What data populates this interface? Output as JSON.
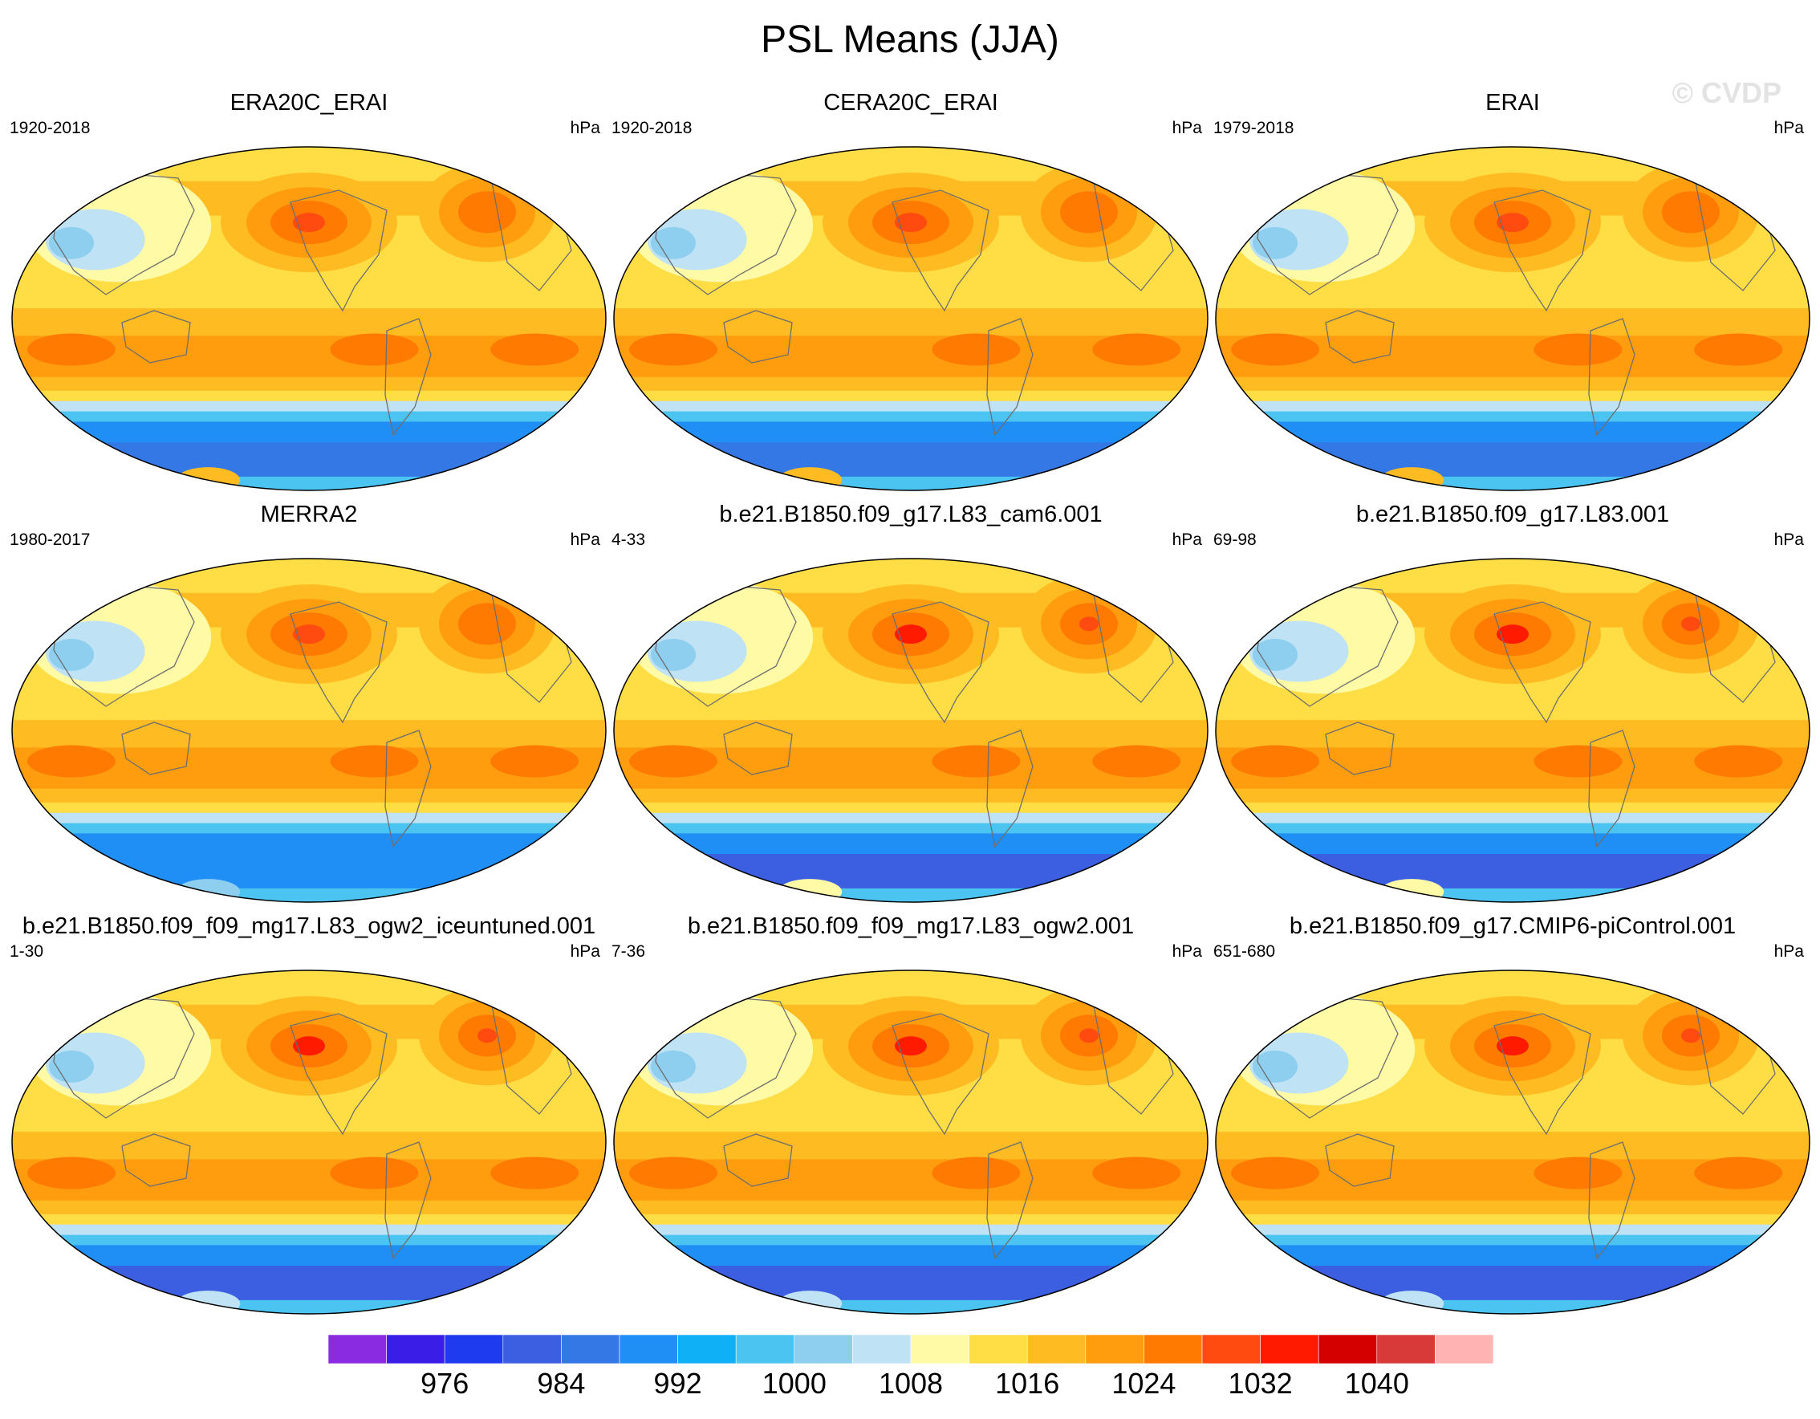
{
  "chart_data": {
    "type": "heatmap",
    "title": "PSL Means (JJA)",
    "watermark": "© CVDP",
    "projection": "Robinson (Pacific-centered)",
    "panels": [
      {
        "title": "ERA20C_ERAI",
        "period": "1920-2018",
        "units": "hPa",
        "subtropical_high_max": 1028,
        "polar_trough_min": 984,
        "antarctic_interior": "1016"
      },
      {
        "title": "CERA20C_ERAI",
        "period": "1920-2018",
        "units": "hPa",
        "subtropical_high_max": 1028,
        "polar_trough_min": 984,
        "antarctic_interior": "1016"
      },
      {
        "title": "ERAI",
        "period": "1979-2018",
        "units": "hPa",
        "subtropical_high_max": 1028,
        "polar_trough_min": 984,
        "antarctic_interior": "1016"
      },
      {
        "title": "MERRA2",
        "period": "1980-2017",
        "units": "hPa",
        "subtropical_high_max": 1028,
        "polar_trough_min": 988,
        "antarctic_interior": "1000"
      },
      {
        "title": "b.e21.B1850.f09_g17.L83_cam6.001",
        "period": "4-33",
        "units": "hPa",
        "subtropical_high_max": 1032,
        "polar_trough_min": 980,
        "antarctic_interior": "1008"
      },
      {
        "title": "b.e21.B1850.f09_g17.L83.001",
        "period": "69-98",
        "units": "hPa",
        "subtropical_high_max": 1032,
        "polar_trough_min": 980,
        "antarctic_interior": "1008"
      },
      {
        "title": "b.e21.B1850.f09_f09_mg17.L83_ogw2_iceuntuned.001",
        "period": "1-30",
        "units": "hPa",
        "subtropical_high_max": 1032,
        "polar_trough_min": 980,
        "antarctic_interior": "1004"
      },
      {
        "title": "b.e21.B1850.f09_f09_mg17.L83_ogw2.001",
        "period": "7-36",
        "units": "hPa",
        "subtropical_high_max": 1032,
        "polar_trough_min": 980,
        "antarctic_interior": "1004"
      },
      {
        "title": "b.e21.B1850.f09_g17.CMIP6-piControl.001",
        "period": "651-680",
        "units": "hPa",
        "subtropical_high_max": 1032,
        "polar_trough_min": 980,
        "antarctic_interior": "1004"
      }
    ],
    "colorbar": {
      "tick_labels": [
        "976",
        "984",
        "992",
        "1000",
        "1008",
        "1016",
        "1024",
        "1032",
        "1040"
      ],
      "levels": [
        972,
        976,
        980,
        984,
        988,
        992,
        996,
        1000,
        1004,
        1008,
        1012,
        1016,
        1020,
        1024,
        1028,
        1032,
        1036,
        1040,
        1044
      ],
      "colors": [
        "#8a2be2",
        "#3a1ee8",
        "#1f3bf0",
        "#3b5fe0",
        "#3478e6",
        "#1f8ff5",
        "#0fb0f5",
        "#4cc4f2",
        "#8ecff0",
        "#bfe2f5",
        "#fffaa6",
        "#ffdd44",
        "#ffbb22",
        "#ff9d0f",
        "#ff7a00",
        "#ff4a10",
        "#ff1a00",
        "#d40000",
        "#d83a3a",
        "#ffb3b3"
      ]
    }
  }
}
